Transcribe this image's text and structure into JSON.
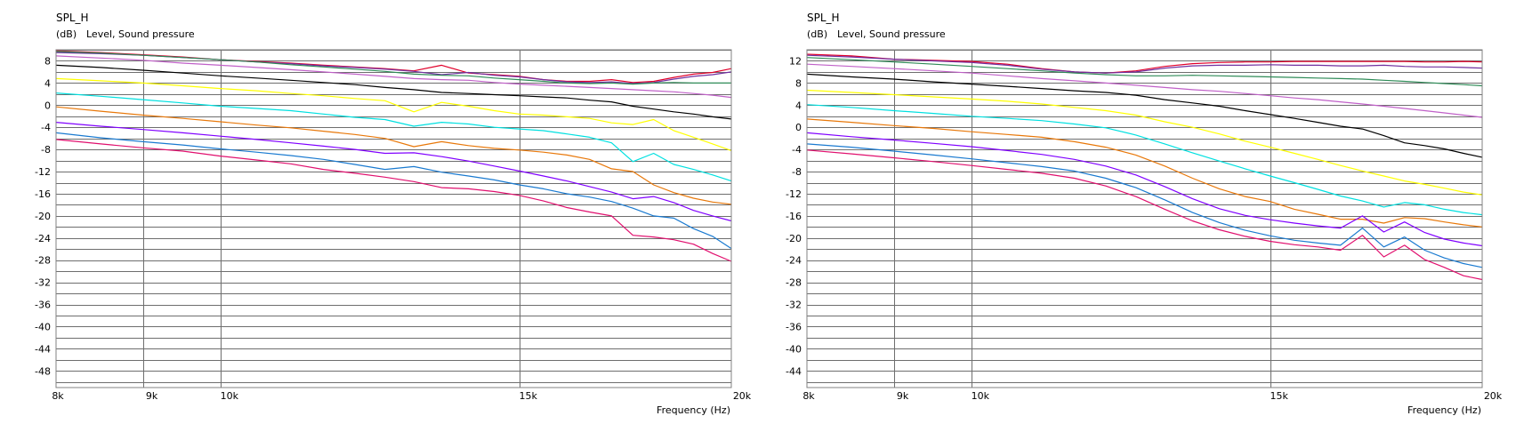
{
  "chart_data": [
    {
      "type": "line",
      "title": "SPL_H",
      "ylabel_unit": "(dB)",
      "ylabel": "Level, Sound pressure",
      "xlabel": "Frequency  (Hz)",
      "x_scale": "log",
      "xlim": [
        8000,
        20000
      ],
      "ylim": [
        -51,
        10
      ],
      "grid": true,
      "x_ticks": [
        8000,
        9000,
        10000,
        15000,
        20000
      ],
      "x_tick_labels": [
        "8k",
        "9k",
        "10k",
        "15k",
        "20k"
      ],
      "y_ticks": [
        8,
        4,
        0,
        -4,
        -8,
        -12,
        -16,
        -20,
        -24,
        -28,
        -32,
        -36,
        -40,
        -44,
        -48
      ],
      "y_tick_labels": [
        "8",
        "4",
        "0",
        "-4",
        "-8",
        "-12",
        "-16",
        "-20",
        "-24",
        "-28",
        "-32",
        "-36",
        "-40",
        "-44",
        "-48"
      ],
      "x": [
        8000,
        8500,
        9000,
        9500,
        10000,
        10500,
        11000,
        11500,
        12000,
        12500,
        13000,
        13500,
        14000,
        14500,
        15000,
        15500,
        16000,
        16500,
        17000,
        17500,
        18000,
        18500,
        19000,
        19500,
        20000
      ],
      "series": [
        {
          "color": "#e0002a",
          "values": [
            9.8,
            9.5,
            9.1,
            8.7,
            8.2,
            7.9,
            7.6,
            7.2,
            6.9,
            6.6,
            6.2,
            7.2,
            5.8,
            5.5,
            5.2,
            4.6,
            4.3,
            4.3,
            4.6,
            4.1,
            4.3,
            5.0,
            5.6,
            5.9,
            6.6
          ]
        },
        {
          "color": "#7030a0",
          "values": [
            9.5,
            9.3,
            9.0,
            8.6,
            8.2,
            7.8,
            7.5,
            7.1,
            6.8,
            6.5,
            6.1,
            5.5,
            5.9,
            5.4,
            5.1,
            4.6,
            4.2,
            4.1,
            4.2,
            3.9,
            4.1,
            4.7,
            5.2,
            5.5,
            6.0
          ]
        },
        {
          "color": "#2e8b57",
          "values": [
            9.7,
            9.4,
            9.0,
            8.6,
            8.2,
            7.8,
            7.3,
            6.9,
            6.5,
            6.1,
            5.6,
            5.4,
            5.3,
            4.9,
            4.6,
            4.3,
            4.0,
            3.9,
            4.0,
            3.8,
            4.0,
            4.1,
            4.0,
            4.0,
            4.0
          ]
        },
        {
          "color": "#c060c8",
          "values": [
            8.9,
            8.5,
            8.1,
            7.6,
            7.2,
            6.8,
            6.4,
            6.0,
            5.6,
            5.2,
            4.8,
            4.6,
            4.5,
            4.1,
            3.8,
            3.6,
            3.4,
            3.2,
            3.0,
            2.8,
            2.6,
            2.4,
            2.1,
            1.8,
            1.4
          ]
        },
        {
          "color": "#000000",
          "values": [
            7.2,
            6.8,
            6.3,
            5.8,
            5.3,
            4.9,
            4.5,
            4.1,
            3.7,
            3.2,
            2.8,
            2.3,
            2.1,
            1.9,
            1.7,
            1.5,
            1.3,
            0.9,
            0.6,
            -0.2,
            -0.7,
            -1.2,
            -1.6,
            -2.1,
            -2.5
          ]
        },
        {
          "color": "#ffff00",
          "values": [
            4.8,
            4.4,
            4.0,
            3.5,
            3.0,
            2.6,
            2.1,
            1.7,
            1.2,
            0.8,
            -1.2,
            0.5,
            -0.2,
            -1.0,
            -1.6,
            -1.8,
            -2.1,
            -2.4,
            -3.2,
            -3.5,
            -2.6,
            -4.6,
            -5.8,
            -7.0,
            -8.2
          ]
        },
        {
          "color": "#00e0e0",
          "values": [
            2.2,
            1.6,
            1.0,
            0.4,
            -0.2,
            -0.6,
            -1.0,
            -1.6,
            -2.2,
            -2.6,
            -3.8,
            -3.1,
            -3.4,
            -4.0,
            -4.3,
            -4.6,
            -5.2,
            -5.8,
            -6.8,
            -10.2,
            -8.7,
            -10.7,
            -11.6,
            -12.6,
            -13.7
          ]
        },
        {
          "color": "#e8780a",
          "values": [
            -0.3,
            -1.1,
            -1.8,
            -2.4,
            -3.0,
            -3.6,
            -4.1,
            -4.7,
            -5.3,
            -6.0,
            -7.5,
            -6.6,
            -7.3,
            -7.8,
            -8.1,
            -8.5,
            -9.0,
            -9.8,
            -11.5,
            -12.0,
            -14.4,
            -15.8,
            -16.8,
            -17.5,
            -17.9
          ]
        },
        {
          "color": "#8000ff",
          "values": [
            -3.1,
            -3.8,
            -4.4,
            -5.0,
            -5.6,
            -6.2,
            -6.8,
            -7.4,
            -8.0,
            -8.7,
            -8.6,
            -9.3,
            -10.1,
            -11.0,
            -11.9,
            -12.8,
            -13.7,
            -14.7,
            -15.7,
            -16.9,
            -16.5,
            -17.6,
            -19.0,
            -20.0,
            -20.9
          ]
        },
        {
          "color": "#1a7ad0",
          "values": [
            -5.0,
            -5.9,
            -6.6,
            -7.2,
            -7.9,
            -8.5,
            -9.1,
            -9.8,
            -10.7,
            -11.6,
            -11.1,
            -12.1,
            -12.8,
            -13.5,
            -14.4,
            -15.1,
            -16.0,
            -16.6,
            -17.4,
            -18.6,
            -20.0,
            -20.4,
            -22.3,
            -23.7,
            -25.9
          ]
        },
        {
          "color": "#e0106e",
          "values": [
            -6.2,
            -7.0,
            -7.7,
            -8.3,
            -9.2,
            -9.9,
            -10.6,
            -11.6,
            -12.3,
            -13.0,
            -13.8,
            -14.9,
            -15.1,
            -15.6,
            -16.3,
            -17.3,
            -18.5,
            -19.3,
            -20.0,
            -23.5,
            -23.8,
            -24.3,
            -25.1,
            -26.8,
            -28.2
          ]
        }
      ]
    },
    {
      "type": "line",
      "title": "SPL_H",
      "ylabel_unit": "(dB)",
      "ylabel": "Level, Sound pressure",
      "xlabel": "Frequency  (Hz)",
      "x_scale": "log",
      "xlim": [
        8000,
        20000
      ],
      "ylim": [
        -47,
        14
      ],
      "grid": true,
      "x_ticks": [
        8000,
        9000,
        10000,
        15000,
        20000
      ],
      "x_tick_labels": [
        "8k",
        "9k",
        "10k",
        "15k",
        "20k"
      ],
      "y_ticks": [
        12,
        8,
        4,
        0,
        -4,
        -8,
        -12,
        -16,
        -20,
        -24,
        -28,
        -32,
        -36,
        -40,
        -44
      ],
      "y_tick_labels": [
        "12",
        "8",
        "4",
        "0",
        "-4",
        "-8",
        "-12",
        "-16",
        "-20",
        "-24",
        "-28",
        "-32",
        "-36",
        "-40",
        "-44"
      ],
      "x": [
        8000,
        8500,
        9000,
        9500,
        10000,
        10500,
        11000,
        11500,
        12000,
        12500,
        13000,
        13500,
        14000,
        14500,
        15000,
        15500,
        16000,
        16500,
        17000,
        17500,
        18000,
        18500,
        19000,
        19500,
        20000
      ],
      "series": [
        {
          "color": "#e0002a",
          "values": [
            13.2,
            12.9,
            12.3,
            12.1,
            11.9,
            11.4,
            10.6,
            10.0,
            9.8,
            10.2,
            11.0,
            11.5,
            11.7,
            11.8,
            11.8,
            11.9,
            11.9,
            11.9,
            11.9,
            11.9,
            11.9,
            11.8,
            11.8,
            11.9,
            11.8
          ]
        },
        {
          "color": "#7030a0",
          "values": [
            13.0,
            12.7,
            12.3,
            12.0,
            11.7,
            11.2,
            10.5,
            10.0,
            9.8,
            10.0,
            10.7,
            11.1,
            11.2,
            11.2,
            11.3,
            11.2,
            11.2,
            11.1,
            11.1,
            11.2,
            11.0,
            10.9,
            10.9,
            10.8,
            10.7
          ]
        },
        {
          "color": "#2e8b57",
          "values": [
            12.6,
            12.2,
            11.8,
            11.4,
            11.0,
            10.6,
            10.2,
            9.8,
            9.5,
            9.3,
            9.3,
            9.4,
            9.3,
            9.2,
            9.1,
            9.0,
            8.9,
            8.8,
            8.7,
            8.5,
            8.3,
            8.1,
            7.9,
            7.7,
            7.5
          ]
        },
        {
          "color": "#c060c8",
          "values": [
            11.4,
            11.0,
            10.6,
            10.2,
            9.8,
            9.3,
            8.8,
            8.4,
            8.0,
            7.6,
            7.2,
            6.8,
            6.5,
            6.1,
            5.7,
            5.3,
            5.0,
            4.6,
            4.2,
            3.8,
            3.4,
            3.0,
            2.6,
            2.2,
            1.8
          ]
        },
        {
          "color": "#000000",
          "values": [
            9.6,
            9.1,
            8.7,
            8.2,
            7.8,
            7.4,
            7.0,
            6.6,
            6.3,
            5.8,
            5.0,
            4.4,
            3.8,
            3.0,
            2.3,
            1.6,
            0.9,
            0.2,
            -0.3,
            -1.5,
            -2.8,
            -3.3,
            -3.9,
            -4.7,
            -5.4
          ]
        },
        {
          "color": "#ffff00",
          "values": [
            6.7,
            6.3,
            5.9,
            5.5,
            5.1,
            4.7,
            4.2,
            3.6,
            3.0,
            2.2,
            1.0,
            0.0,
            -1.2,
            -2.5,
            -3.6,
            -4.7,
            -5.8,
            -6.9,
            -7.9,
            -8.8,
            -9.7,
            -10.3,
            -11.0,
            -11.7,
            -12.2
          ]
        },
        {
          "color": "#00e0e0",
          "values": [
            4.1,
            3.6,
            3.0,
            2.5,
            2.0,
            1.6,
            1.2,
            0.6,
            -0.1,
            -1.4,
            -3.0,
            -4.6,
            -6.1,
            -7.5,
            -8.8,
            -10.0,
            -11.2,
            -12.4,
            -13.3,
            -14.4,
            -13.6,
            -14.0,
            -14.8,
            -15.4,
            -15.8
          ]
        },
        {
          "color": "#e8780a",
          "values": [
            1.5,
            0.9,
            0.3,
            -0.2,
            -0.8,
            -1.3,
            -1.8,
            -2.6,
            -3.6,
            -5.0,
            -7.0,
            -9.2,
            -11.1,
            -12.5,
            -13.4,
            -14.8,
            -15.7,
            -16.6,
            -16.6,
            -17.3,
            -16.3,
            -16.5,
            -17.1,
            -17.6,
            -18.0
          ]
        },
        {
          "color": "#8000ff",
          "values": [
            -1.0,
            -1.7,
            -2.3,
            -2.9,
            -3.5,
            -4.2,
            -4.9,
            -5.8,
            -7.0,
            -8.6,
            -10.7,
            -12.9,
            -14.7,
            -15.9,
            -16.7,
            -17.3,
            -17.8,
            -18.2,
            -16.0,
            -18.9,
            -17.1,
            -19.0,
            -20.2,
            -20.9,
            -21.4
          ]
        },
        {
          "color": "#1a7ad0",
          "values": [
            -3.0,
            -3.6,
            -4.3,
            -5.0,
            -5.7,
            -6.4,
            -7.1,
            -7.9,
            -9.2,
            -10.9,
            -13.1,
            -15.4,
            -17.2,
            -18.6,
            -19.6,
            -20.4,
            -20.9,
            -21.3,
            -18.2,
            -21.6,
            -19.8,
            -22.2,
            -23.6,
            -24.6,
            -25.3
          ]
        },
        {
          "color": "#e0106e",
          "values": [
            -4.1,
            -4.8,
            -5.5,
            -6.2,
            -6.9,
            -7.6,
            -8.3,
            -9.2,
            -10.6,
            -12.5,
            -14.8,
            -16.9,
            -18.5,
            -19.7,
            -20.6,
            -21.2,
            -21.6,
            -22.2,
            -19.5,
            -23.4,
            -21.3,
            -23.9,
            -25.3,
            -26.8,
            -27.5
          ]
        }
      ]
    }
  ]
}
